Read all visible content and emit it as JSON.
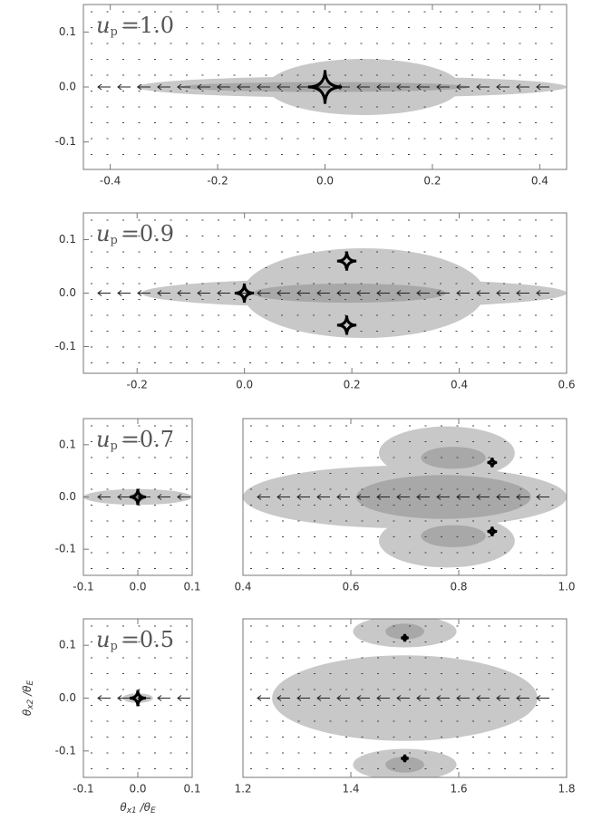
{
  "chart_data": [
    {
      "type": "field",
      "annotation": {
        "symbol": "u",
        "subscript": "p",
        "text": "=1.0"
      },
      "xlim": [
        -0.45,
        0.45
      ],
      "ylim": [
        -0.15,
        0.15
      ],
      "xticks": [
        -0.4,
        -0.2,
        {
          "value": 0,
          "label": "0.0"
        },
        0.2,
        0.4
      ],
      "yticks": [
        0.1,
        {
          "value": 0,
          "label": "0.0"
        },
        -0.1
      ]
    },
    {
      "type": "field",
      "annotation": {
        "symbol": "u",
        "subscript": "p",
        "text": "=0.9"
      },
      "xlim": [
        -0.3,
        0.6
      ],
      "ylim": [
        -0.15,
        0.15
      ],
      "xticks": [
        -0.2,
        {
          "value": 0,
          "label": "0.0"
        },
        0.2,
        0.4,
        0.6
      ],
      "yticks": [
        0.1,
        {
          "value": 0,
          "label": "0.0"
        },
        -0.1
      ]
    },
    {
      "type": "field",
      "annotation": {
        "symbol": "u",
        "subscript": "p",
        "text": "=0.7"
      },
      "xlim": [
        -0.1,
        0.1
      ],
      "ylim": [
        -0.15,
        0.15
      ],
      "xticks": [
        -0.1,
        {
          "value": 0,
          "label": "0.0"
        },
        0.1
      ],
      "yticks": [
        0.1,
        {
          "value": 0,
          "label": "0.0"
        },
        -0.1
      ]
    },
    {
      "type": "field",
      "xlim": [
        0.4,
        1.0
      ],
      "ylim": [
        -0.15,
        0.15
      ],
      "xticks": [
        0.4,
        0.6,
        0.8,
        {
          "value": 1,
          "label": "1.0"
        }
      ]
    },
    {
      "type": "field",
      "annotation": {
        "symbol": "u",
        "subscript": "p",
        "text": "=0.5"
      },
      "xlim": [
        -0.1,
        0.1
      ],
      "ylim": [
        -0.15,
        0.15
      ],
      "xticks": [
        -0.1,
        {
          "value": 0,
          "label": "0.0"
        },
        0.1
      ],
      "yticks": [
        0.1,
        {
          "value": 0,
          "label": "0.0"
        },
        -0.1
      ],
      "xlabel": [
        "θ",
        "x1",
        " /θ",
        "E"
      ],
      "ylabel": [
        "θ",
        "x2",
        " /θ",
        "E"
      ]
    },
    {
      "type": "field",
      "xlim": [
        1.2,
        1.8
      ],
      "ylim": [
        -0.15,
        0.15
      ],
      "xticks": [
        1.2,
        1.4,
        1.6,
        1.8
      ]
    }
  ]
}
